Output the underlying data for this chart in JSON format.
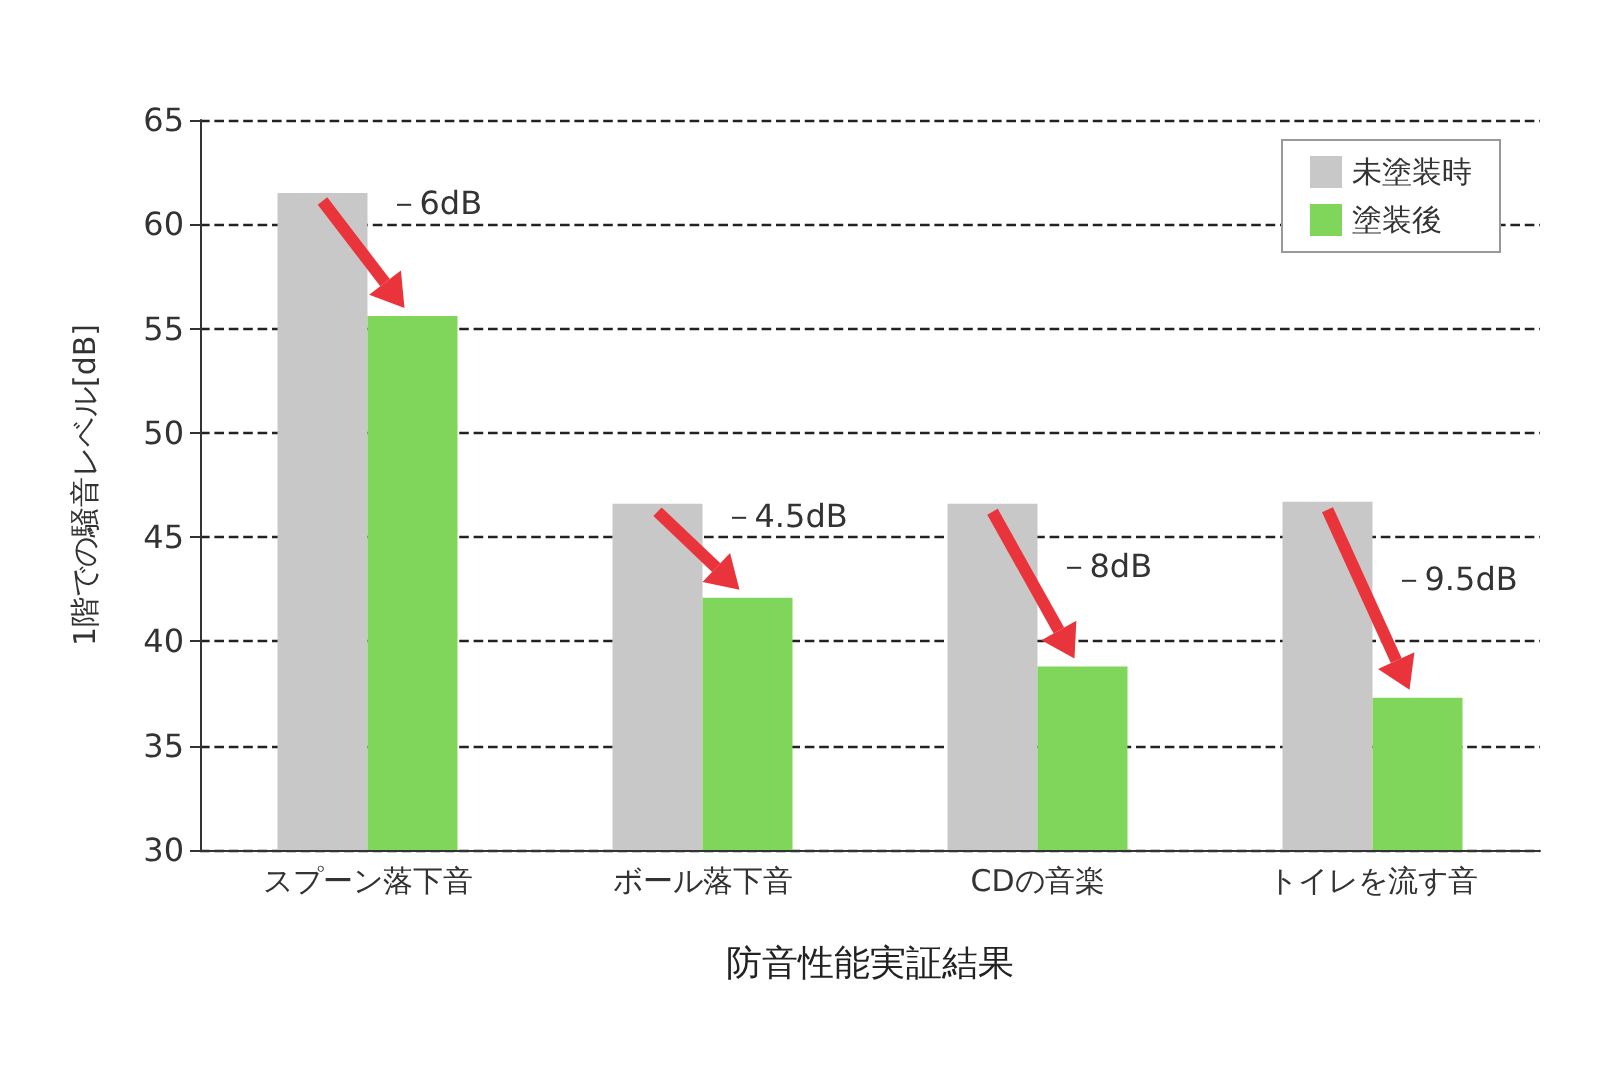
{
  "chart_data": {
    "type": "bar",
    "xlabel": "防音性能実証結果",
    "ylabel": "1階での騒音レベル[dB]",
    "categories": [
      "スプーン落下音",
      "ボール落下音",
      "CDの音楽",
      "トイレを流す音"
    ],
    "series": [
      {
        "name": "未塗装時",
        "color": "#c8c8c8",
        "values": [
          61.5,
          46.6,
          46.6,
          46.7
        ]
      },
      {
        "name": "塗装後",
        "color": "#7fd65a",
        "values": [
          55.6,
          42.1,
          38.8,
          37.3
        ]
      }
    ],
    "ylim": [
      30,
      65
    ],
    "yticks": [
      30,
      35,
      40,
      45,
      50,
      55,
      60,
      65
    ],
    "grid": "y",
    "legend": "top right",
    "annotations": [
      {
        "text": "－6dB",
        "x": "スプーン落下音",
        "y": 61
      },
      {
        "text": "－4.5dB",
        "x": "ボール落下音",
        "y": 46
      },
      {
        "text": "－8dB",
        "x": "CDの音楽",
        "y": 43.6
      },
      {
        "text": "－9.5dB",
        "x": "トイレを流す音",
        "y": 43
      }
    ]
  }
}
